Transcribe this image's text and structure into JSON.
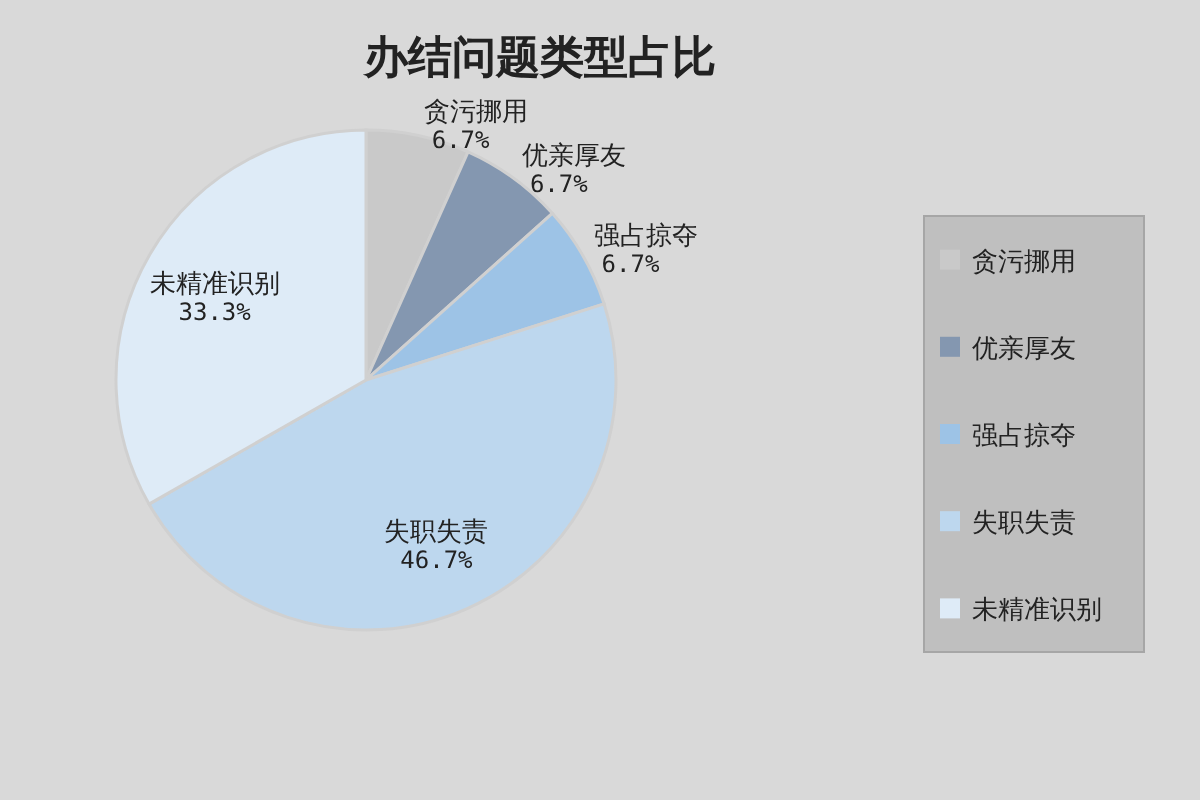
{
  "chart_data": {
    "type": "pie",
    "title": "办结问题类型占比",
    "categories": [
      "贪污挪用",
      "优亲厚友",
      "强占掠夺",
      "失职失责",
      "未精准识别"
    ],
    "values": [
      6.7,
      6.7,
      6.7,
      46.7,
      33.3
    ],
    "value_labels": [
      "6.7%",
      "6.7%",
      "6.7%",
      "46.7%",
      "33.3%"
    ],
    "colors": [
      "#c9c9c9",
      "#8497b0",
      "#9dc3e6",
      "#bdd7ee",
      "#deebf7"
    ],
    "legend": "right"
  }
}
